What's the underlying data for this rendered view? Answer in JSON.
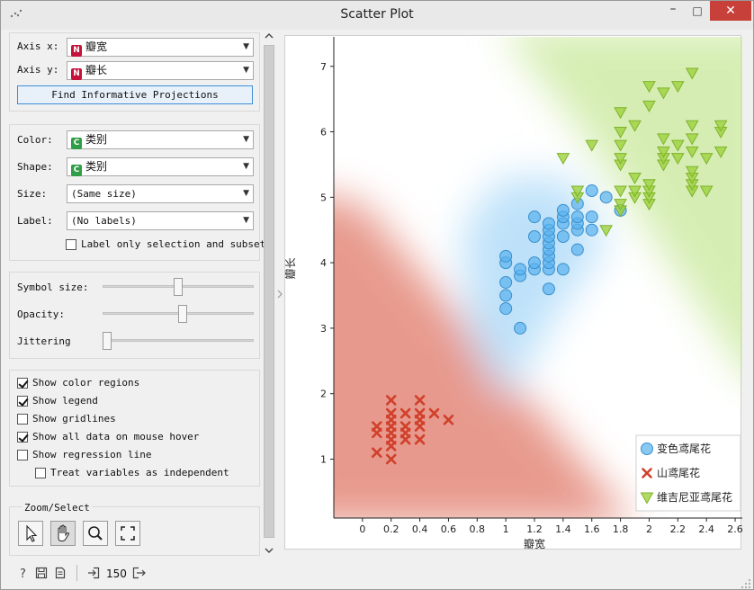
{
  "window": {
    "title": "Scatter Plot"
  },
  "controls": {
    "axis_x_label": "Axis x:",
    "axis_x_value": "瓣宽",
    "axis_y_label": "Axis y:",
    "axis_y_value": "瓣长",
    "find_projections": "Find Informative Projections",
    "color_label": "Color:",
    "color_value": "类别",
    "shape_label": "Shape:",
    "shape_value": "类别",
    "size_label": "Size:",
    "size_value": "(Same size)",
    "label_label": "Label:",
    "label_value": "(No labels)",
    "label_only_selection": "Label only selection and subset",
    "symbol_size_label": "Symbol size:",
    "symbol_size_level": 0.5,
    "opacity_label": "Opacity:",
    "opacity_level": 0.53,
    "jittering_label": "Jittering",
    "jittering_level": 0.0,
    "show_color_regions": "Show color regions",
    "show_legend": "Show legend",
    "show_gridlines": "Show gridlines",
    "show_all_data": "Show all data on mouse hover",
    "show_regression": "Show regression line",
    "treat_independent": "Treat variables as independent",
    "zoom_select_title": "Zoom/Select"
  },
  "checks": {
    "color_regions": true,
    "legend": true,
    "gridlines": false,
    "all_data": true,
    "regression": false,
    "independent": false,
    "label_only": false
  },
  "status": {
    "count": "150"
  },
  "colors": {
    "class1": "#5bb3ef",
    "class2": "#d0402b",
    "class3": "#9ed23f"
  },
  "chart_data": {
    "type": "scatter",
    "xlabel": "瓣宽",
    "ylabel": "瓣长",
    "xlim": [
      -0.2,
      2.65
    ],
    "ylim": [
      0.1,
      7.45
    ],
    "xticks": [
      "0",
      "0.2",
      "0.4",
      "0.6",
      "0.8",
      "1",
      "1.2",
      "1.4",
      "1.6",
      "1.8",
      "2",
      "2.2",
      "2.4",
      "2.6"
    ],
    "yticks": [
      "1",
      "2",
      "3",
      "4",
      "5",
      "6",
      "7"
    ],
    "legend": [
      "变色鸢尾花",
      "山鸢尾花",
      "维吉尼亚鸢尾花"
    ],
    "legend_position": "bottom-right",
    "grid": false,
    "series": [
      {
        "name": "变色鸢尾花",
        "marker": "circle",
        "points": [
          [
            1.0,
            3.3
          ],
          [
            1.0,
            3.5
          ],
          [
            1.0,
            3.7
          ],
          [
            1.0,
            4.0
          ],
          [
            1.0,
            4.1
          ],
          [
            1.1,
            3.0
          ],
          [
            1.1,
            3.8
          ],
          [
            1.1,
            3.9
          ],
          [
            1.2,
            3.9
          ],
          [
            1.2,
            4.0
          ],
          [
            1.2,
            4.4
          ],
          [
            1.2,
            4.7
          ],
          [
            1.3,
            3.6
          ],
          [
            1.3,
            3.9
          ],
          [
            1.3,
            4.0
          ],
          [
            1.3,
            4.1
          ],
          [
            1.3,
            4.2
          ],
          [
            1.3,
            4.3
          ],
          [
            1.3,
            4.4
          ],
          [
            1.3,
            4.5
          ],
          [
            1.3,
            4.6
          ],
          [
            1.4,
            3.9
          ],
          [
            1.4,
            4.4
          ],
          [
            1.4,
            4.6
          ],
          [
            1.4,
            4.7
          ],
          [
            1.4,
            4.8
          ],
          [
            1.5,
            4.2
          ],
          [
            1.5,
            4.5
          ],
          [
            1.5,
            4.6
          ],
          [
            1.5,
            4.7
          ],
          [
            1.5,
            4.9
          ],
          [
            1.6,
            4.5
          ],
          [
            1.6,
            4.7
          ],
          [
            1.6,
            5.1
          ],
          [
            1.7,
            5.0
          ],
          [
            1.8,
            4.8
          ]
        ]
      },
      {
        "name": "山鸢尾花",
        "marker": "x",
        "points": [
          [
            0.1,
            1.1
          ],
          [
            0.1,
            1.4
          ],
          [
            0.1,
            1.5
          ],
          [
            0.2,
            1.0
          ],
          [
            0.2,
            1.2
          ],
          [
            0.2,
            1.3
          ],
          [
            0.2,
            1.4
          ],
          [
            0.2,
            1.5
          ],
          [
            0.2,
            1.6
          ],
          [
            0.2,
            1.7
          ],
          [
            0.2,
            1.9
          ],
          [
            0.3,
            1.3
          ],
          [
            0.3,
            1.4
          ],
          [
            0.3,
            1.5
          ],
          [
            0.3,
            1.7
          ],
          [
            0.4,
            1.3
          ],
          [
            0.4,
            1.5
          ],
          [
            0.4,
            1.6
          ],
          [
            0.4,
            1.7
          ],
          [
            0.4,
            1.9
          ],
          [
            0.5,
            1.7
          ],
          [
            0.6,
            1.6
          ]
        ]
      },
      {
        "name": "维吉尼亚鸢尾花",
        "marker": "triangle-down",
        "points": [
          [
            1.4,
            5.6
          ],
          [
            1.5,
            5.0
          ],
          [
            1.5,
            5.1
          ],
          [
            1.6,
            5.8
          ],
          [
            1.7,
            4.5
          ],
          [
            1.8,
            4.8
          ],
          [
            1.8,
            4.9
          ],
          [
            1.8,
            5.1
          ],
          [
            1.8,
            5.5
          ],
          [
            1.8,
            5.6
          ],
          [
            1.8,
            5.8
          ],
          [
            1.8,
            6.0
          ],
          [
            1.8,
            6.3
          ],
          [
            1.9,
            5.0
          ],
          [
            1.9,
            5.1
          ],
          [
            1.9,
            5.3
          ],
          [
            1.9,
            6.1
          ],
          [
            2.0,
            4.9
          ],
          [
            2.0,
            5.0
          ],
          [
            2.0,
            5.1
          ],
          [
            2.0,
            5.2
          ],
          [
            2.0,
            6.4
          ],
          [
            2.0,
            6.7
          ],
          [
            2.1,
            5.5
          ],
          [
            2.1,
            5.6
          ],
          [
            2.1,
            5.7
          ],
          [
            2.1,
            5.9
          ],
          [
            2.1,
            6.6
          ],
          [
            2.2,
            5.6
          ],
          [
            2.2,
            5.8
          ],
          [
            2.2,
            6.7
          ],
          [
            2.3,
            5.1
          ],
          [
            2.3,
            5.2
          ],
          [
            2.3,
            5.3
          ],
          [
            2.3,
            5.4
          ],
          [
            2.3,
            5.7
          ],
          [
            2.3,
            5.9
          ],
          [
            2.3,
            6.1
          ],
          [
            2.3,
            6.9
          ],
          [
            2.4,
            5.1
          ],
          [
            2.4,
            5.6
          ],
          [
            2.5,
            5.7
          ],
          [
            2.5,
            6.0
          ],
          [
            2.5,
            6.1
          ]
        ]
      }
    ]
  }
}
